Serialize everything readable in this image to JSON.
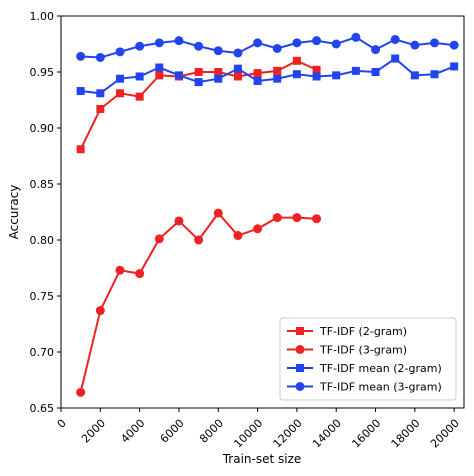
{
  "chart_data": {
    "type": "line",
    "xlabel": "Train-set size",
    "ylabel": "Accuracy",
    "xlim": [
      0,
      20500
    ],
    "ylim": [
      0.65,
      1.0
    ],
    "xticks": [
      0,
      2000,
      4000,
      6000,
      8000,
      10000,
      12000,
      14000,
      16000,
      18000,
      20000
    ],
    "yticks": [
      0.65,
      0.7,
      0.75,
      0.8,
      0.85,
      0.9,
      0.95,
      1.0
    ],
    "xtick_labels": [
      "0",
      "2000",
      "4000",
      "6000",
      "8000",
      "10000",
      "12000",
      "14000",
      "16000",
      "18000",
      "20000"
    ],
    "ytick_labels": [
      "0.65",
      "0.70",
      "0.75",
      "0.80",
      "0.85",
      "0.90",
      "0.95",
      "1.00"
    ],
    "grid": false,
    "legend_position": "bottom-right",
    "series": [
      {
        "name": "TF-IDF (2-gram)",
        "color": "#ee2222",
        "marker": "square",
        "x": [
          1000,
          2000,
          3000,
          4000,
          5000,
          6000,
          7000,
          8000,
          9000,
          10000,
          11000,
          12000,
          13000
        ],
        "y": [
          0.881,
          0.917,
          0.931,
          0.928,
          0.947,
          0.946,
          0.95,
          0.95,
          0.946,
          0.949,
          0.951,
          0.96,
          0.952
        ]
      },
      {
        "name": "TF-IDF (3-gram)",
        "color": "#ee2222",
        "marker": "circle",
        "x": [
          1000,
          2000,
          3000,
          4000,
          5000,
          6000,
          7000,
          8000,
          9000,
          10000,
          11000,
          12000,
          13000
        ],
        "y": [
          0.664,
          0.737,
          0.773,
          0.77,
          0.801,
          0.817,
          0.8,
          0.824,
          0.804,
          0.81,
          0.82,
          0.82,
          0.819
        ]
      },
      {
        "name": "TF-IDF mean (2-gram)",
        "color": "#2244ee",
        "marker": "square",
        "x": [
          1000,
          2000,
          3000,
          4000,
          5000,
          6000,
          7000,
          8000,
          9000,
          10000,
          11000,
          12000,
          13000,
          14000,
          15000,
          16000,
          17000,
          18000,
          19000,
          20000
        ],
        "y": [
          0.933,
          0.931,
          0.944,
          0.946,
          0.954,
          0.947,
          0.941,
          0.944,
          0.953,
          0.942,
          0.944,
          0.948,
          0.946,
          0.947,
          0.951,
          0.95,
          0.962,
          0.947,
          0.948,
          0.955
        ]
      },
      {
        "name": "TF-IDF mean (3-gram)",
        "color": "#2244ee",
        "marker": "circle",
        "x": [
          1000,
          2000,
          3000,
          4000,
          5000,
          6000,
          7000,
          8000,
          9000,
          10000,
          11000,
          12000,
          13000,
          14000,
          15000,
          16000,
          17000,
          18000,
          19000,
          20000
        ],
        "y": [
          0.964,
          0.963,
          0.968,
          0.973,
          0.976,
          0.978,
          0.973,
          0.969,
          0.967,
          0.976,
          0.971,
          0.976,
          0.978,
          0.975,
          0.981,
          0.97,
          0.979,
          0.974,
          0.976,
          0.974
        ]
      }
    ]
  }
}
